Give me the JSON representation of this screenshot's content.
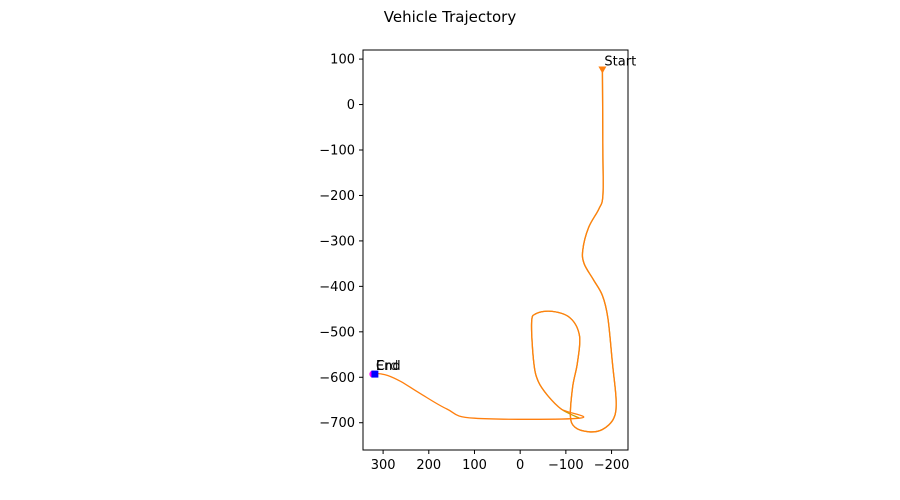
{
  "chart_data": {
    "type": "line",
    "title": "Vehicle Trajectory",
    "xlabel": "",
    "ylabel": "",
    "x_inverted": true,
    "xlim": [
      344,
      -236
    ],
    "ylim": [
      -760,
      120
    ],
    "xticks": [
      300,
      200,
      100,
      0,
      -100,
      -200
    ],
    "xtick_labels": [
      "300",
      "200",
      "100",
      "0",
      "−100",
      "−200"
    ],
    "yticks": [
      100,
      0,
      -100,
      -200,
      -300,
      -400,
      -500,
      -600,
      -700
    ],
    "ytick_labels": [
      "100",
      "0",
      "−100",
      "−200",
      "−300",
      "−400",
      "−500",
      "−600",
      "−700"
    ],
    "grid": false,
    "legend": "none",
    "series": [
      {
        "color": "#c8a000",
        "points": [
          [
            -180,
            77
          ],
          [
            -181,
            -100
          ],
          [
            -181,
            -200
          ],
          [
            -172,
            -230
          ],
          [
            -150,
            -270
          ],
          [
            -137,
            -320
          ],
          [
            -140,
            -350
          ],
          [
            -160,
            -385
          ],
          [
            -180,
            -420
          ],
          [
            -192,
            -470
          ],
          [
            -202,
            -570
          ],
          [
            -210,
            -650
          ],
          [
            -205,
            -690
          ],
          [
            -180,
            -715
          ],
          [
            -150,
            -720
          ],
          [
            -120,
            -710
          ],
          [
            -110,
            -685
          ],
          [
            -115,
            -620
          ],
          [
            -125,
            -570
          ],
          [
            -130,
            -510
          ],
          [
            -110,
            -470
          ],
          [
            -70,
            -455
          ],
          [
            -35,
            -460
          ],
          [
            -25,
            -480
          ],
          [
            -30,
            -570
          ],
          [
            -40,
            -610
          ],
          [
            -60,
            -640
          ],
          [
            -90,
            -670
          ],
          [
            -130,
            -690
          ]
        ]
      },
      {
        "color": "#ff7f0e",
        "points": [
          [
            -180,
            77
          ],
          [
            -181,
            -100
          ],
          [
            -181,
            -200
          ],
          [
            -172,
            -230
          ],
          [
            -150,
            -270
          ],
          [
            -137,
            -320
          ],
          [
            -140,
            -350
          ],
          [
            -160,
            -385
          ],
          [
            -180,
            -420
          ],
          [
            -192,
            -470
          ],
          [
            -202,
            -570
          ],
          [
            -210,
            -650
          ],
          [
            -205,
            -690
          ],
          [
            -180,
            -715
          ],
          [
            -150,
            -720
          ],
          [
            -120,
            -710
          ],
          [
            -110,
            -685
          ],
          [
            -115,
            -620
          ],
          [
            -125,
            -570
          ],
          [
            -130,
            -510
          ],
          [
            -110,
            -470
          ],
          [
            -70,
            -455
          ],
          [
            -35,
            -460
          ],
          [
            -25,
            -480
          ],
          [
            -30,
            -570
          ],
          [
            -40,
            -610
          ],
          [
            -60,
            -640
          ],
          [
            -90,
            -670
          ],
          [
            -130,
            -690
          ],
          [
            100,
            -690
          ],
          [
            160,
            -670
          ],
          [
            220,
            -635
          ],
          [
            260,
            -610
          ],
          [
            290,
            -596
          ],
          [
            310,
            -592
          ],
          [
            318,
            -593
          ]
        ]
      }
    ],
    "start": {
      "x": -180,
      "y": 77,
      "label": "Start",
      "color": "#ff7f0e"
    },
    "end": {
      "x": 318,
      "y": -593,
      "label": "End",
      "color": "#0000ff"
    },
    "end_overlap_label": "Crd"
  }
}
